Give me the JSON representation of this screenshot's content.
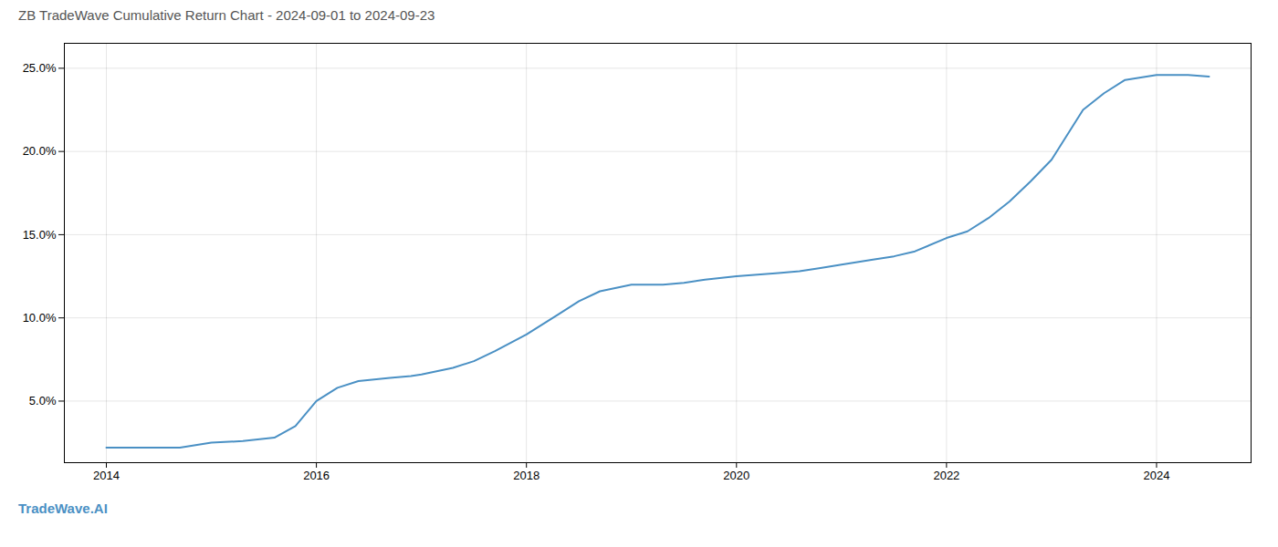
{
  "chart_data": {
    "type": "line",
    "title": "ZB TradeWave Cumulative Return Chart - 2024-09-01 to 2024-09-23",
    "annotations": [
      "TradeWave.AI"
    ],
    "color": "#4a90c4",
    "x": [
      2014.0,
      2014.2,
      2014.5,
      2014.7,
      2015.0,
      2015.3,
      2015.6,
      2015.8,
      2016.0,
      2016.2,
      2016.4,
      2016.7,
      2016.9,
      2017.0,
      2017.3,
      2017.5,
      2017.7,
      2018.0,
      2018.3,
      2018.5,
      2018.7,
      2019.0,
      2019.3,
      2019.5,
      2019.7,
      2020.0,
      2020.2,
      2020.4,
      2020.6,
      2020.8,
      2021.0,
      2021.3,
      2021.5,
      2021.7,
      2022.0,
      2022.2,
      2022.4,
      2022.6,
      2022.8,
      2023.0,
      2023.1,
      2023.2,
      2023.3,
      2023.5,
      2023.7,
      2024.0,
      2024.3,
      2024.5
    ],
    "values": [
      2.2,
      2.2,
      2.2,
      2.2,
      2.5,
      2.6,
      2.8,
      3.5,
      5.0,
      5.8,
      6.2,
      6.4,
      6.5,
      6.6,
      7.0,
      7.4,
      8.0,
      9.0,
      10.2,
      11.0,
      11.6,
      12.0,
      12.0,
      12.1,
      12.3,
      12.5,
      12.6,
      12.7,
      12.8,
      13.0,
      13.2,
      13.5,
      13.7,
      14.0,
      14.8,
      15.2,
      16.0,
      17.0,
      18.2,
      19.5,
      20.5,
      21.5,
      22.5,
      23.5,
      24.3,
      24.6,
      24.6,
      24.5
    ],
    "xlim": [
      2013.6,
      2024.9
    ],
    "ylim": [
      1.3,
      26.5
    ],
    "xticks": [
      2014,
      2016,
      2018,
      2020,
      2022,
      2024
    ],
    "yticks": [
      {
        "value": 5.0,
        "label": "5.0%"
      },
      {
        "value": 10.0,
        "label": "10.0%"
      },
      {
        "value": 15.0,
        "label": "15.0%"
      },
      {
        "value": 20.0,
        "label": "20.0%"
      },
      {
        "value": 25.0,
        "label": "25.0%"
      }
    ],
    "grid": true
  }
}
